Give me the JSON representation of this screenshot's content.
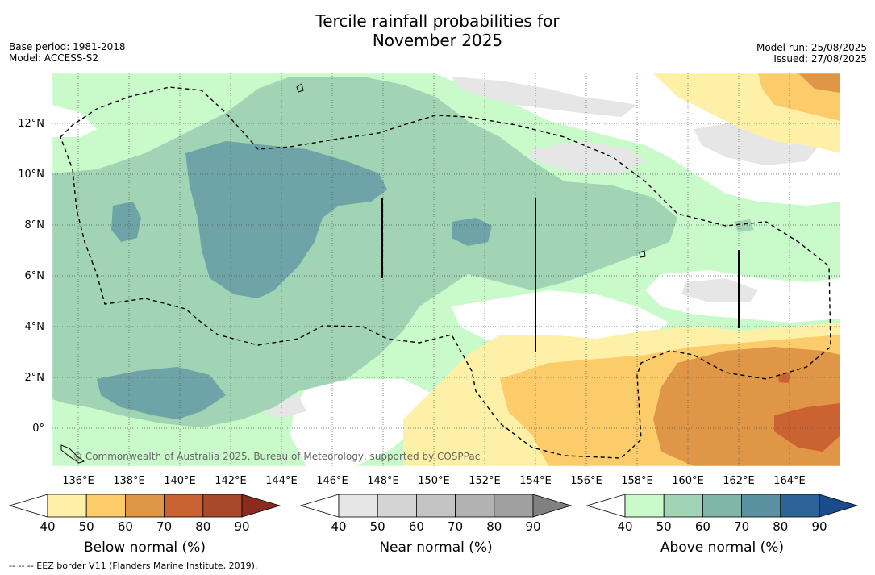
{
  "header": {
    "title_line1": "Tercile rainfall probabilities for",
    "title_line2": "November 2025",
    "base_period": "Base period: 1981-2018",
    "model": "Model: ACCESS-S2",
    "model_run": "Model run: 25/08/2025",
    "issued": "Issued: 27/08/2025"
  },
  "map": {
    "lat_labels": [
      "12°N",
      "10°N",
      "8°N",
      "6°N",
      "4°N",
      "2°N",
      "0°"
    ],
    "lon_labels": [
      "136°E",
      "138°E",
      "140°E",
      "142°E",
      "144°E",
      "146°E",
      "148°E",
      "150°E",
      "152°E",
      "154°E",
      "156°E",
      "158°E",
      "160°E",
      "162°E",
      "164°E"
    ],
    "copyright": "© Commonwealth of Australia 2025, Bureau of Meteorology, supported by COSPPac"
  },
  "legends": [
    {
      "title": "Below normal (%)",
      "ticks": [
        "40",
        "50",
        "60",
        "70",
        "80",
        "90"
      ],
      "colors": [
        "#ffffff",
        "#fff0a8",
        "#fdcc6a",
        "#e09647",
        "#ca6331",
        "#a9492a",
        "#8b2a1e"
      ]
    },
    {
      "title": "Near normal (%)",
      "ticks": [
        "40",
        "50",
        "60",
        "70",
        "80",
        "90"
      ],
      "colors": [
        "#ffffff",
        "#e6e6e6",
        "#d4d4d4",
        "#c4c4c4",
        "#b2b2b2",
        "#a0a0a0",
        "#808080"
      ]
    },
    {
      "title": "Above normal (%)",
      "ticks": [
        "40",
        "50",
        "60",
        "70",
        "80",
        "90"
      ],
      "colors": [
        "#ffffff",
        "#c9fac9",
        "#a0d4b4",
        "#7fb6a8",
        "#5a91a0",
        "#2e6397",
        "#1a4b8a"
      ]
    }
  ],
  "footer": {
    "eez_note": "--  --  -- EEZ border V11 (Flanders Marine Institute, 2019)."
  }
}
